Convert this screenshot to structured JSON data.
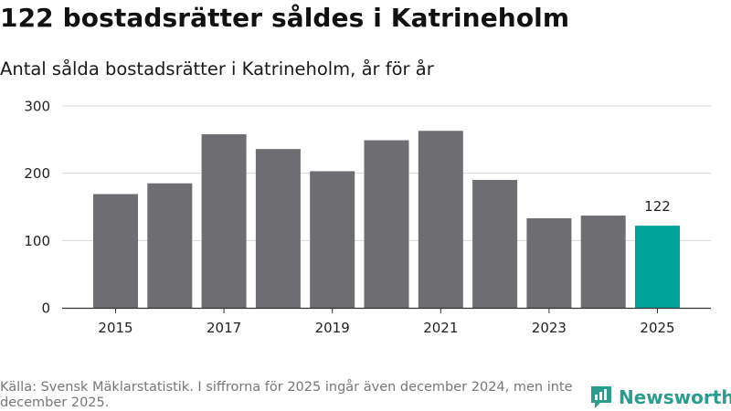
{
  "title": "122 bostadsrätter såldes i Katrineholm",
  "subtitle": "Antal sålda bostadsrätter i Katrineholm, år för år",
  "source": "Källa: Svensk Mäklarstatistik. I siffrorna för 2025 ingår även december 2024, men inte december 2025.",
  "brand": "Newsworthy",
  "colors": {
    "bar": "#6e6d72",
    "highlight": "#00a398",
    "grid": "#d9d9d9",
    "axis": "#333333",
    "brand": "#2a9d8f"
  },
  "icons": {
    "brand_logo": "bar-chart-icon"
  },
  "chart_data": {
    "type": "bar",
    "title": "122 bostadsrätter såldes i Katrineholm",
    "subtitle": "Antal sålda bostadsrätter i Katrineholm, år för år",
    "categories": [
      "2015",
      "2016",
      "2017",
      "2018",
      "2019",
      "2020",
      "2021",
      "2022",
      "2023",
      "2024",
      "2025"
    ],
    "values": [
      169,
      185,
      258,
      236,
      203,
      249,
      263,
      190,
      133,
      137,
      122
    ],
    "highlight_index": 10,
    "data_labels": [
      {
        "index": 10,
        "text": "122"
      }
    ],
    "x_tick_labels": [
      "2015",
      "2017",
      "2019",
      "2021",
      "2023",
      "2025"
    ],
    "y_ticks": [
      0,
      100,
      200,
      300
    ],
    "ylim": [
      0,
      300
    ],
    "xlabel": "",
    "ylabel": "",
    "grid": true
  }
}
